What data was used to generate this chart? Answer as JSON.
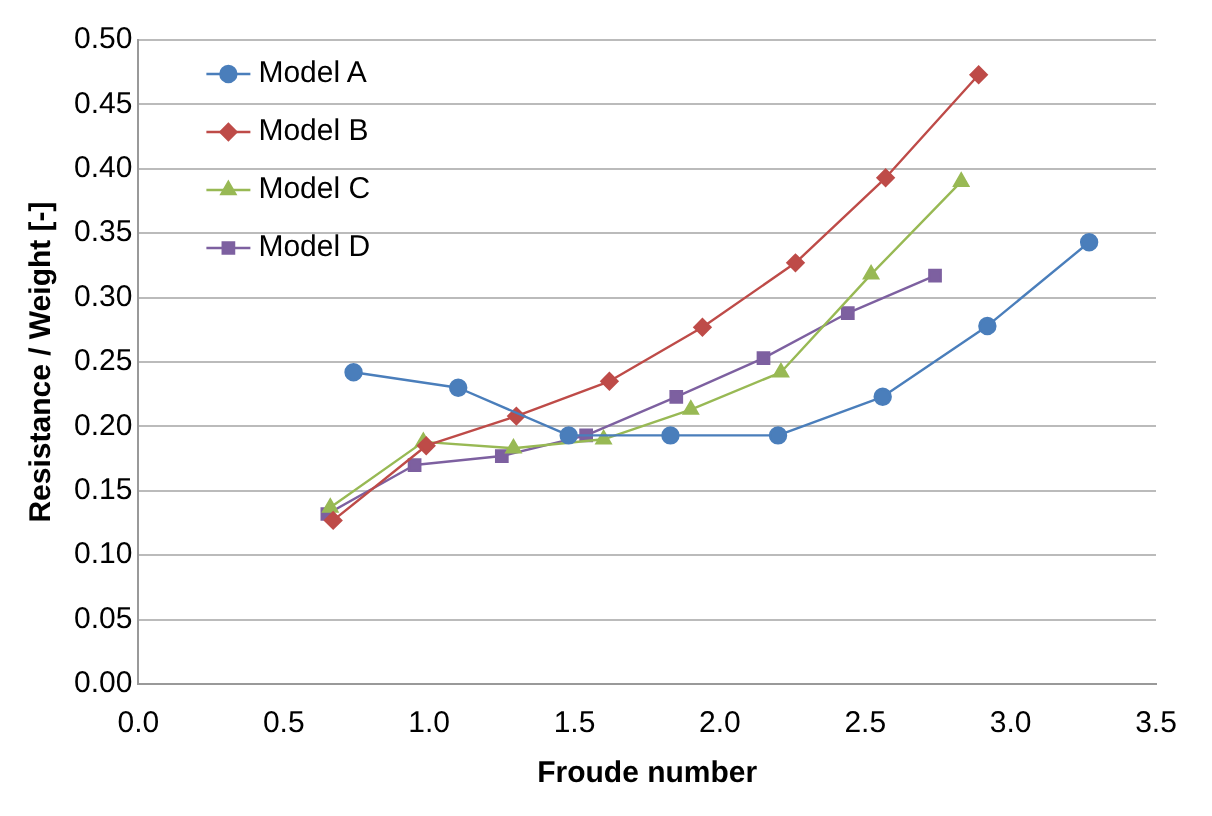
{
  "chart_data": {
    "type": "line",
    "xlabel": "Froude number",
    "ylabel": "Resistance / Weight [-]",
    "xlim": [
      0,
      3.5
    ],
    "xticks": [
      {
        "value": 0,
        "label": "0.0"
      },
      {
        "value": 0.5,
        "label": "0.5"
      },
      {
        "value": 1,
        "label": "1.0"
      },
      {
        "value": 1.5,
        "label": "1.5"
      },
      {
        "value": 2,
        "label": "2.0"
      },
      {
        "value": 2.5,
        "label": "2.5"
      },
      {
        "value": 3,
        "label": "3.0"
      },
      {
        "value": 3.5,
        "label": "3.5"
      }
    ],
    "ylim": [
      0,
      0.5
    ],
    "yticks": [
      {
        "value": 0,
        "label": "0.00"
      },
      {
        "value": 0.05,
        "label": "0.05"
      },
      {
        "value": 0.1,
        "label": "0.10"
      },
      {
        "value": 0.15,
        "label": "0.15"
      },
      {
        "value": 0.2,
        "label": "0.20"
      },
      {
        "value": 0.25,
        "label": "0.25"
      },
      {
        "value": 0.3,
        "label": "0.30"
      },
      {
        "value": 0.35,
        "label": "0.35"
      },
      {
        "value": 0.4,
        "label": "0.40"
      },
      {
        "value": 0.45,
        "label": "0.45"
      },
      {
        "value": 0.5,
        "label": "0.50"
      }
    ],
    "grid": "y",
    "legend": "top left",
    "series": [
      {
        "name": "Model A",
        "color": "#4a7ebb",
        "marker": "circle",
        "x": [
          0.74,
          1.1,
          1.48,
          1.83,
          2.2,
          2.56,
          2.92,
          3.27
        ],
        "values": [
          0.242,
          0.23,
          0.193,
          0.193,
          0.193,
          0.223,
          0.278,
          0.343
        ]
      },
      {
        "name": "Model B",
        "color": "#be4b48",
        "marker": "diamond",
        "x": [
          0.67,
          0.99,
          1.3,
          1.62,
          1.94,
          2.26,
          2.57,
          2.89
        ],
        "values": [
          0.127,
          0.185,
          0.208,
          0.235,
          0.277,
          0.327,
          0.393,
          0.473
        ]
      },
      {
        "name": "Model C",
        "color": "#98b954",
        "marker": "triangle",
        "x": [
          0.66,
          0.98,
          1.29,
          1.6,
          1.9,
          2.21,
          2.52,
          2.83
        ],
        "values": [
          0.137,
          0.188,
          0.183,
          0.19,
          0.213,
          0.242,
          0.318,
          0.39
        ]
      },
      {
        "name": "Model D",
        "color": "#7d60a0",
        "marker": "square",
        "x": [
          0.65,
          0.95,
          1.25,
          1.54,
          1.85,
          2.15,
          2.44,
          2.74
        ],
        "values": [
          0.132,
          0.17,
          0.177,
          0.193,
          0.223,
          0.253,
          0.288,
          0.317
        ]
      }
    ]
  }
}
